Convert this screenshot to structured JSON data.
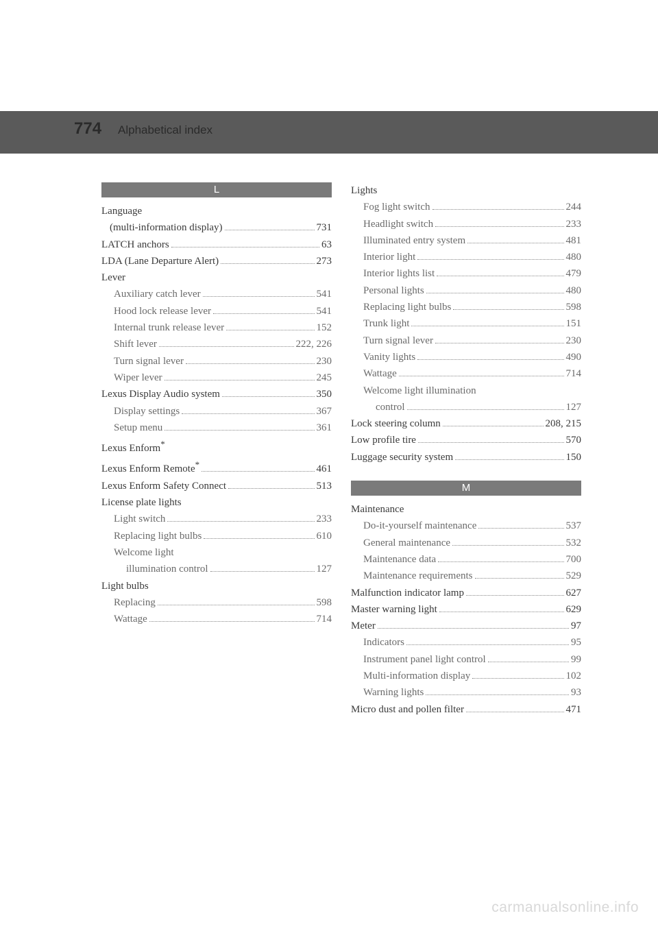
{
  "header": {
    "page_number": "774",
    "title": "Alphabetical index"
  },
  "columns": [
    {
      "sections": [
        {
          "letter": "L",
          "entries": [
            {
              "label": "Language",
              "page": "",
              "indent": 0,
              "nodots": true
            },
            {
              "label": "(multi-information display)",
              "page": "731",
              "indent": 1,
              "plainindent": true
            },
            {
              "label": "LATCH anchors",
              "page": "63",
              "indent": 0
            },
            {
              "label": "LDA (Lane Departure Alert)",
              "page": "273",
              "indent": 0
            },
            {
              "label": "Lever",
              "page": "",
              "indent": 0,
              "nodots": true
            },
            {
              "label": "Auxiliary catch lever",
              "page": "541",
              "indent": 1
            },
            {
              "label": "Hood lock release lever",
              "page": "541",
              "indent": 1
            },
            {
              "label": "Internal trunk release lever",
              "page": "152",
              "indent": 1
            },
            {
              "label": "Shift lever",
              "page": "222, 226",
              "indent": 1
            },
            {
              "label": "Turn signal lever",
              "page": "230",
              "indent": 1
            },
            {
              "label": "Wiper lever",
              "page": "245",
              "indent": 1
            },
            {
              "label": "Lexus Display Audio system",
              "page": "350",
              "indent": 0
            },
            {
              "label": "Display settings",
              "page": "367",
              "indent": 1
            },
            {
              "label": "Setup menu",
              "page": "361",
              "indent": 1
            },
            {
              "label": "Lexus Enform",
              "page": "",
              "indent": 0,
              "nodots": true,
              "star": true
            },
            {
              "label": "Lexus Enform Remote",
              "page": "461",
              "indent": 0,
              "star": true
            },
            {
              "label": "Lexus Enform Safety Connect",
              "page": "513",
              "indent": 0
            },
            {
              "label": "License plate lights",
              "page": "",
              "indent": 0,
              "nodots": true
            },
            {
              "label": "Light switch",
              "page": "233",
              "indent": 1
            },
            {
              "label": "Replacing light bulbs",
              "page": "610",
              "indent": 1
            },
            {
              "label": "Welcome light",
              "page": "",
              "indent": 1,
              "nodots": true
            },
            {
              "label": "illumination control",
              "page": "127",
              "indent": 2
            },
            {
              "label": "Light bulbs",
              "page": "",
              "indent": 0,
              "nodots": true
            },
            {
              "label": "Replacing",
              "page": "598",
              "indent": 1
            },
            {
              "label": "Wattage",
              "page": "714",
              "indent": 1
            }
          ]
        }
      ]
    },
    {
      "sections": [
        {
          "entries": [
            {
              "label": "Lights",
              "page": "",
              "indent": 0,
              "nodots": true
            },
            {
              "label": "Fog light switch",
              "page": "244",
              "indent": 1
            },
            {
              "label": "Headlight switch",
              "page": "233",
              "indent": 1
            },
            {
              "label": "Illuminated entry system",
              "page": "481",
              "indent": 1
            },
            {
              "label": "Interior light",
              "page": "480",
              "indent": 1
            },
            {
              "label": "Interior lights list",
              "page": "479",
              "indent": 1
            },
            {
              "label": "Personal lights",
              "page": "480",
              "indent": 1
            },
            {
              "label": "Replacing light bulbs",
              "page": "598",
              "indent": 1
            },
            {
              "label": "Trunk light",
              "page": "151",
              "indent": 1
            },
            {
              "label": "Turn signal lever",
              "page": "230",
              "indent": 1
            },
            {
              "label": "Vanity lights",
              "page": "490",
              "indent": 1
            },
            {
              "label": "Wattage",
              "page": "714",
              "indent": 1
            },
            {
              "label": "Welcome light illumination",
              "page": "",
              "indent": 1,
              "nodots": true
            },
            {
              "label": "control",
              "page": "127",
              "indent": 2
            },
            {
              "label": "Lock steering column",
              "page": "208, 215",
              "indent": 0
            },
            {
              "label": "Low profile tire",
              "page": "570",
              "indent": 0
            },
            {
              "label": "Luggage security system",
              "page": "150",
              "indent": 0
            }
          ]
        },
        {
          "letter": "M",
          "gap_before": true,
          "entries": [
            {
              "label": "Maintenance",
              "page": "",
              "indent": 0,
              "nodots": true
            },
            {
              "label": "Do-it-yourself maintenance",
              "page": "537",
              "indent": 1
            },
            {
              "label": "General maintenance",
              "page": "532",
              "indent": 1
            },
            {
              "label": "Maintenance data",
              "page": "700",
              "indent": 1
            },
            {
              "label": "Maintenance requirements",
              "page": "529",
              "indent": 1
            },
            {
              "label": "Malfunction indicator lamp",
              "page": "627",
              "indent": 0
            },
            {
              "label": "Master warning light",
              "page": "629",
              "indent": 0
            },
            {
              "label": "Meter",
              "page": "97",
              "indent": 0
            },
            {
              "label": "Indicators",
              "page": "95",
              "indent": 1
            },
            {
              "label": "Instrument panel light control",
              "page": "99",
              "indent": 1
            },
            {
              "label": "Multi-information display",
              "page": "102",
              "indent": 1
            },
            {
              "label": "Warning lights",
              "page": "93",
              "indent": 1
            },
            {
              "label": "Micro dust and pollen filter",
              "page": "471",
              "indent": 0
            }
          ]
        }
      ]
    }
  ],
  "watermark": "carmanualsonline.info"
}
